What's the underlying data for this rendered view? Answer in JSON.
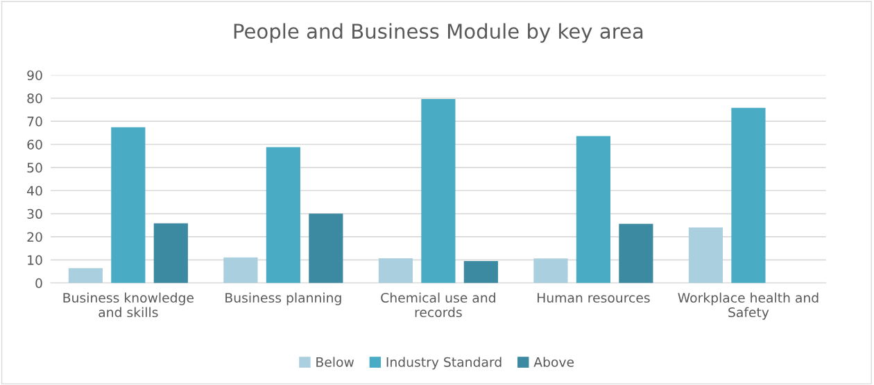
{
  "chart_data": {
    "type": "bar",
    "title": "People and Business Module by key area",
    "categories": [
      "Business knowledge\nand skills",
      "Business planning",
      "Chemical use and\nrecords",
      "Human resources",
      "Workplace health and\nSafety"
    ],
    "series": [
      {
        "name": "Below",
        "color": "#aacfde",
        "values": [
          6.4,
          11.1,
          10.7,
          10.6,
          24.0
        ]
      },
      {
        "name": "Industry Standard",
        "color": "#4aabc5",
        "values": [
          67.4,
          58.8,
          79.6,
          63.6,
          75.8
        ]
      },
      {
        "name": "Above",
        "color": "#3c8aa1",
        "values": [
          25.8,
          30.0,
          9.5,
          25.6,
          null
        ]
      }
    ],
    "ylim": [
      0,
      90
    ],
    "yticks": [
      0,
      10,
      20,
      30,
      40,
      50,
      60,
      70,
      80,
      90
    ],
    "grid": "y",
    "legend": "bottom"
  }
}
